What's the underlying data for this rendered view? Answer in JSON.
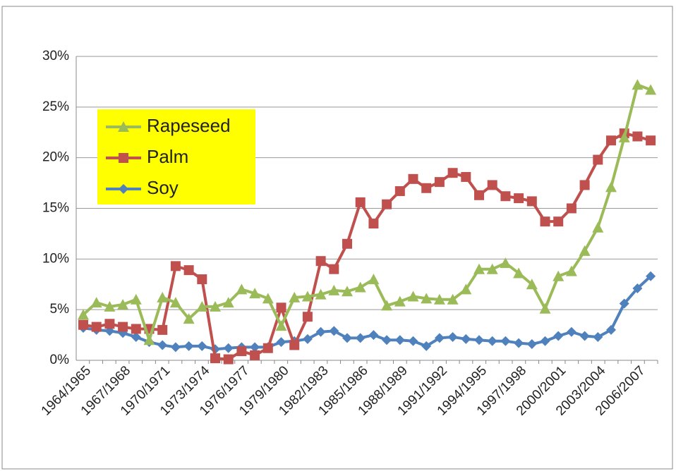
{
  "chart_data": {
    "type": "line",
    "categories": [
      "1964/1965",
      null,
      null,
      "1967/1968",
      null,
      null,
      "1970/1971",
      null,
      null,
      "1973/1974",
      null,
      null,
      "1976/1977",
      null,
      null,
      "1979/1980",
      null,
      null,
      "1982/1983",
      null,
      null,
      "1985/1986",
      null,
      null,
      "1988/1989",
      null,
      null,
      "1991/1992",
      null,
      null,
      "1994/1995",
      null,
      null,
      "1997/1998",
      null,
      null,
      "2000/2001",
      null,
      null,
      "2003/2004",
      null,
      null,
      "2006/2007",
      null
    ],
    "series": [
      {
        "name": "Rapeseed",
        "color": "#9bbb59",
        "marker": "triangle",
        "values": [
          4.5,
          5.7,
          5.3,
          5.5,
          6.0,
          2.0,
          6.2,
          5.7,
          4.1,
          5.3,
          5.3,
          5.7,
          7.0,
          6.6,
          6.1,
          3.4,
          6.2,
          6.3,
          6.5,
          6.9,
          6.8,
          7.2,
          8.0,
          5.4,
          5.8,
          6.3,
          6.1,
          6.0,
          6.0,
          7.0,
          9.0,
          9.0,
          9.6,
          8.6,
          7.5,
          5.1,
          8.3,
          8.8,
          10.8,
          13.1,
          17.1,
          22.0,
          27.2,
          26.7
        ]
      },
      {
        "name": "Palm",
        "color": "#c0504d",
        "marker": "square",
        "values": [
          3.5,
          3.3,
          3.6,
          3.3,
          3.1,
          3.1,
          3.0,
          9.3,
          8.9,
          8.0,
          0.2,
          0.1,
          0.9,
          0.5,
          1.2,
          5.2,
          1.5,
          4.3,
          9.8,
          9.0,
          11.5,
          15.6,
          13.5,
          15.4,
          16.7,
          17.9,
          17.0,
          17.6,
          18.5,
          18.1,
          16.3,
          17.3,
          16.2,
          16.0,
          15.7,
          13.7,
          13.7,
          15.0,
          17.3,
          19.8,
          21.7,
          22.4,
          22.1,
          21.7
        ]
      },
      {
        "name": "Soy",
        "color": "#4f81bd",
        "marker": "diamond",
        "values": [
          3.2,
          3.0,
          2.9,
          2.7,
          2.3,
          1.8,
          1.5,
          1.3,
          1.4,
          1.4,
          1.1,
          1.2,
          1.3,
          1.3,
          1.3,
          1.8,
          1.9,
          2.1,
          2.8,
          2.9,
          2.2,
          2.2,
          2.5,
          2.0,
          2.0,
          1.9,
          1.4,
          2.2,
          2.3,
          2.1,
          2.0,
          1.9,
          1.9,
          1.7,
          1.6,
          1.9,
          2.4,
          2.8,
          2.4,
          2.3,
          3.0,
          5.6,
          7.1,
          8.3
        ]
      }
    ],
    "ylim": [
      0,
      30
    ],
    "yticks": [
      {
        "value": 0,
        "label": "0%"
      },
      {
        "value": 5,
        "label": "5%"
      },
      {
        "value": 10,
        "label": "10%"
      },
      {
        "value": 15,
        "label": "15%"
      },
      {
        "value": 20,
        "label": "20%"
      },
      {
        "value": 25,
        "label": "25%"
      },
      {
        "value": 30,
        "label": "30%"
      }
    ],
    "grid": true,
    "legend": "upper left",
    "legend_background": "#ffff00"
  }
}
